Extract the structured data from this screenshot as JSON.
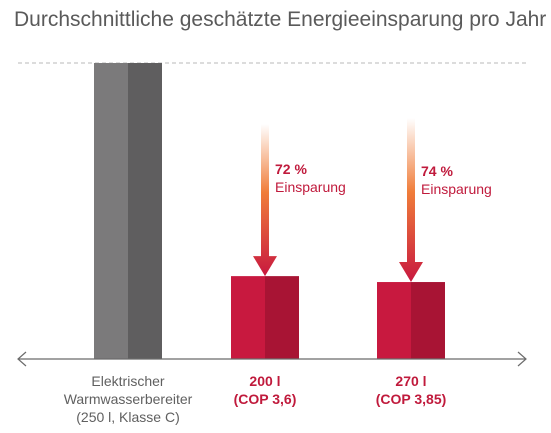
{
  "chart_data": {
    "type": "bar",
    "title": "Durchschnittliche geschätzte Energieeinsparung pro Jahr",
    "categories": [
      [
        "Elektrischer",
        "Warmwasserbereiter",
        "(250 l, Klasse C)"
      ],
      [
        "200 l",
        "(COP 3,6)"
      ],
      [
        "270 l",
        "(COP 3,85)"
      ]
    ],
    "values": [
      100,
      28,
      26
    ],
    "unit": "%",
    "ylim": [
      0,
      100
    ],
    "reference_line": 100,
    "grid": false,
    "legend": "none",
    "savings": [
      {
        "percent": "72 %",
        "label": "Einsparung"
      },
      {
        "percent": "74 %",
        "label": "Einsparung"
      }
    ],
    "colors": {
      "baseline_light": "#7b7a7b",
      "baseline_dark": "#5f5e5f",
      "bar_light": "#c8193f",
      "bar_dark": "#a81434",
      "label_gray": "#606060",
      "label_red": "#c01a3c",
      "arrow_top": "#ffffff",
      "arrow_mid": "#f07d3a",
      "arrow_bottom": "#c8193f",
      "axis": "#6b6b6b",
      "reference": "#b9b9b9"
    }
  }
}
